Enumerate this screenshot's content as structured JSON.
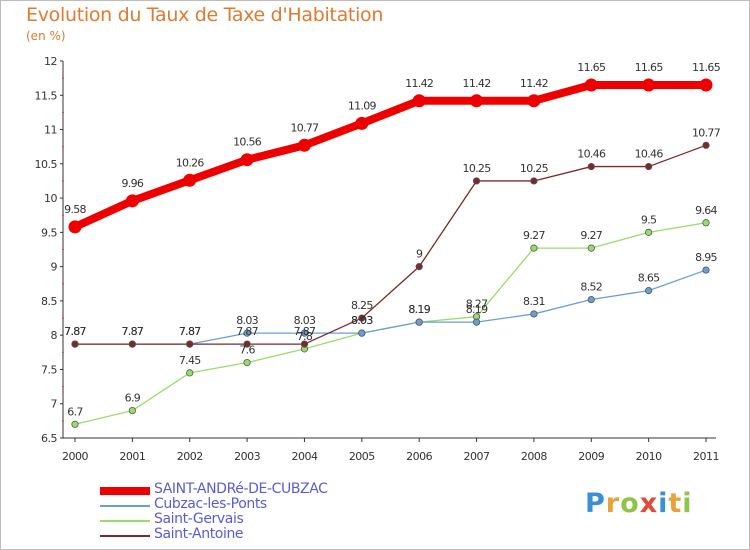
{
  "header": {
    "title": "Evolution du Taux de Taxe d'Habitation",
    "unit": "(en %)"
  },
  "logo": {
    "text": "Proxiti",
    "letters": [
      {
        "ch": "P",
        "color": "#3a8fd6"
      },
      {
        "ch": "r",
        "color": "#e7a33a"
      },
      {
        "ch": "o",
        "color": "#8fc44a"
      },
      {
        "ch": "x",
        "color": "#e04a3a"
      },
      {
        "ch": "i",
        "color": "#3a8fd6"
      },
      {
        "ch": "t",
        "color": "#e7a33a"
      },
      {
        "ch": "i",
        "color": "#8fc44a"
      }
    ]
  },
  "chart_data": {
    "type": "line",
    "x": [
      "2000",
      "2001",
      "2002",
      "2003",
      "2004",
      "2005",
      "2006",
      "2007",
      "2008",
      "2009",
      "2010",
      "2011"
    ],
    "y_ticks": [
      "6.5",
      "7",
      "7.5",
      "8",
      "8.5",
      "9",
      "9.5",
      "10",
      "10.5",
      "11",
      "11.5",
      "12"
    ],
    "ylim": [
      6.5,
      12
    ],
    "grid": false,
    "legend_position": "bottom-left",
    "series": [
      {
        "name": "SAINT-ANDRé-DE-CUBZAC",
        "color": "#ee0000",
        "values": [
          9.58,
          9.96,
          10.26,
          10.56,
          10.77,
          11.09,
          11.42,
          11.42,
          11.42,
          11.65,
          11.65,
          11.65
        ],
        "labels": [
          "9.58",
          "9.96",
          "10.26",
          "10.56",
          "10.77",
          "11.09",
          "11.42",
          "11.42",
          "11.42",
          "11.65",
          "11.65",
          "11.65"
        ]
      },
      {
        "name": "Cubzac-les-Ponts",
        "color": "#6a9fd4",
        "values": [
          7.87,
          7.87,
          7.87,
          8.03,
          8.03,
          8.03,
          8.19,
          8.19,
          8.31,
          8.52,
          8.65,
          8.95
        ],
        "labels": [
          "7.87",
          "7.87",
          "7.87",
          "8.03",
          "8.03",
          "8.03",
          "8.19",
          "8.19",
          "8.31",
          "8.52",
          "8.65",
          "8.95"
        ]
      },
      {
        "name": "Saint-Gervais",
        "color": "#9bdb6a",
        "values": [
          6.7,
          6.9,
          7.45,
          7.6,
          7.8,
          8.03,
          8.19,
          8.27,
          9.27,
          9.27,
          9.5,
          9.64
        ],
        "labels": [
          "6.7",
          "6.9",
          "7.45",
          "7.6",
          "7.8",
          "8.03",
          "8.19",
          "8.27",
          "9.27",
          "9.27",
          "9.5",
          "9.64"
        ]
      },
      {
        "name": "Saint-Antoine",
        "color": "#7a2a2a",
        "values": [
          7.87,
          7.87,
          7.87,
          7.87,
          7.87,
          8.25,
          9,
          10.25,
          10.25,
          10.46,
          10.46,
          10.77
        ],
        "labels": [
          "7.87",
          "7.87",
          "7.87",
          "7.87",
          "7.87",
          "8.25",
          "9",
          "10.25",
          "10.25",
          "10.46",
          "10.46",
          "10.77"
        ]
      }
    ]
  }
}
